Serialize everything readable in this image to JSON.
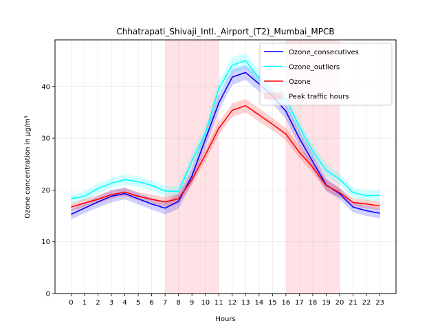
{
  "chart_data": {
    "type": "line",
    "title": "Chhatrapati_Shivaji_Intl._Airport_(T2)_Mumbai_MPCB",
    "xlabel": "Hours",
    "ylabel": "Ozone concentration in µg/m³",
    "x": [
      0,
      1,
      2,
      3,
      4,
      5,
      6,
      7,
      8,
      9,
      10,
      11,
      12,
      13,
      14,
      15,
      16,
      17,
      18,
      19,
      20,
      21,
      22,
      23
    ],
    "x_ticks": [
      "0",
      "1",
      "2",
      "3",
      "4",
      "5",
      "6",
      "7",
      "8",
      "9",
      "10",
      "11",
      "12",
      "13",
      "14",
      "15",
      "16",
      "17",
      "18",
      "19",
      "20",
      "21",
      "22",
      "23"
    ],
    "xlim": [
      -1.2,
      24.2
    ],
    "ylim": [
      0,
      49
    ],
    "y_ticks": [
      0,
      10,
      20,
      30,
      40
    ],
    "grid": true,
    "legend_position": "top-right",
    "series": [
      {
        "name": "Ozone_consecutives",
        "color": "#0000ff",
        "values": [
          15.3,
          16.5,
          17.7,
          18.8,
          19.3,
          18.3,
          17.3,
          16.5,
          17.8,
          22.7,
          29.8,
          36.8,
          41.8,
          42.7,
          40.5,
          38.2,
          35.2,
          30.0,
          25.5,
          21.0,
          19.3,
          16.7,
          16.0,
          15.5
        ],
        "band_low": [
          14.3,
          15.5,
          16.6,
          17.6,
          18.2,
          17.2,
          16.2,
          15.3,
          16.4,
          21.3,
          28.2,
          35.3,
          40.3,
          41.3,
          39.0,
          36.7,
          33.7,
          28.5,
          24.0,
          19.8,
          18.2,
          15.7,
          15.0,
          14.5
        ],
        "band_high": [
          16.3,
          17.5,
          18.8,
          20.0,
          20.5,
          19.4,
          18.4,
          17.7,
          19.2,
          24.1,
          31.4,
          38.3,
          43.3,
          44.1,
          42.0,
          39.7,
          36.7,
          31.5,
          27.0,
          22.2,
          20.4,
          17.7,
          17.0,
          16.5
        ]
      },
      {
        "name": "Ozone_outliers",
        "color": "#00ffff",
        "values": [
          18.3,
          18.8,
          20.3,
          21.3,
          22.0,
          21.6,
          20.9,
          19.8,
          19.7,
          25.6,
          31.0,
          39.6,
          44.1,
          45.0,
          41.6,
          38.5,
          37.5,
          32.2,
          27.5,
          23.8,
          22.1,
          19.5,
          18.9,
          19.0
        ],
        "band_low": [
          17.4,
          17.9,
          19.3,
          20.3,
          21.0,
          20.6,
          19.9,
          18.8,
          18.6,
          24.2,
          29.5,
          38.1,
          42.5,
          43.5,
          40.2,
          37.1,
          36.1,
          30.8,
          26.2,
          22.6,
          21.0,
          18.5,
          17.9,
          18.0
        ],
        "band_high": [
          19.2,
          19.7,
          21.3,
          22.3,
          23.0,
          22.6,
          21.9,
          20.8,
          20.8,
          27.0,
          32.5,
          41.1,
          45.7,
          46.5,
          43.0,
          39.9,
          38.9,
          33.6,
          28.8,
          25.0,
          23.2,
          20.5,
          19.9,
          20.0
        ]
      },
      {
        "name": "Ozone",
        "color": "#ff0000",
        "values": [
          16.7,
          17.5,
          18.2,
          19.1,
          19.6,
          18.8,
          18.2,
          17.7,
          18.3,
          22.0,
          26.8,
          31.9,
          35.4,
          36.3,
          34.5,
          32.7,
          30.8,
          27.3,
          24.4,
          20.9,
          19.5,
          17.6,
          17.3,
          16.9
        ],
        "band_low": [
          15.9,
          16.7,
          17.4,
          18.3,
          18.8,
          18.0,
          17.3,
          16.8,
          17.3,
          21.0,
          25.7,
          30.7,
          34.1,
          35.0,
          33.2,
          31.5,
          29.6,
          26.2,
          23.3,
          19.9,
          18.6,
          16.8,
          16.5,
          16.1
        ],
        "band_high": [
          17.5,
          18.3,
          19.0,
          19.9,
          20.4,
          19.6,
          19.1,
          18.6,
          19.3,
          23.0,
          27.9,
          33.1,
          36.7,
          37.6,
          35.8,
          33.9,
          32.0,
          28.4,
          25.5,
          21.9,
          20.4,
          18.4,
          18.1,
          17.7
        ]
      }
    ],
    "shaded_regions": [
      {
        "x_start": 7,
        "x_end": 11,
        "color": "#ffb6c1"
      },
      {
        "x_start": 16,
        "x_end": 20,
        "color": "#ffb6c1"
      }
    ],
    "shaded_region_label": "Peak traffic hours"
  }
}
